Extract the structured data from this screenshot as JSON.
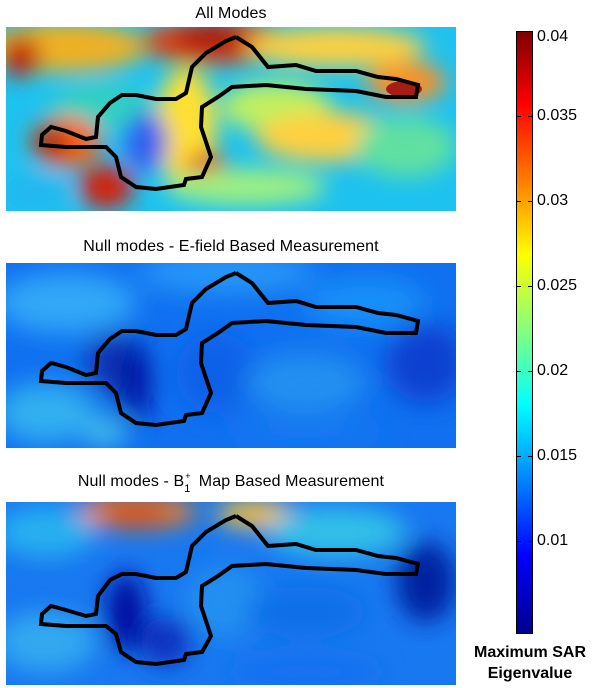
{
  "panels": [
    {
      "title": "All Modes",
      "variant": "all"
    },
    {
      "title": "Null modes - E-field Based Measurement",
      "variant": "efield"
    },
    {
      "title_prefix": "Null modes - B",
      "title_sub": "1",
      "title_sup": "+",
      "title_suffix": " Map Based Measurement",
      "variant": "b1map"
    }
  ],
  "colorbar": {
    "title_line1": "Maximum SAR",
    "title_line2": "Eigenvalue",
    "min": 0.0045,
    "max": 0.04,
    "ticks": [
      "0.04",
      "0.035",
      "0.03",
      "0.025",
      "0.02",
      "0.015",
      "0.01"
    ],
    "tick_values": [
      0.04,
      0.035,
      0.03,
      0.025,
      0.02,
      0.015,
      0.01
    ],
    "colormap": "jet"
  },
  "chart_data": {
    "type": "heatmap",
    "colormap": "jet",
    "clim": [
      0.0045,
      0.04
    ],
    "colorbar_label": "Maximum SAR Eigenvalue",
    "panels": [
      {
        "title": "All Modes",
        "approx_range": [
          0.012,
          0.04
        ]
      },
      {
        "title": "Null modes - E-field Based Measurement",
        "approx_range": [
          0.005,
          0.016
        ]
      },
      {
        "title": "Null modes - B1+ Map Based Measurement",
        "approx_range": [
          0.005,
          0.03
        ]
      }
    ]
  }
}
